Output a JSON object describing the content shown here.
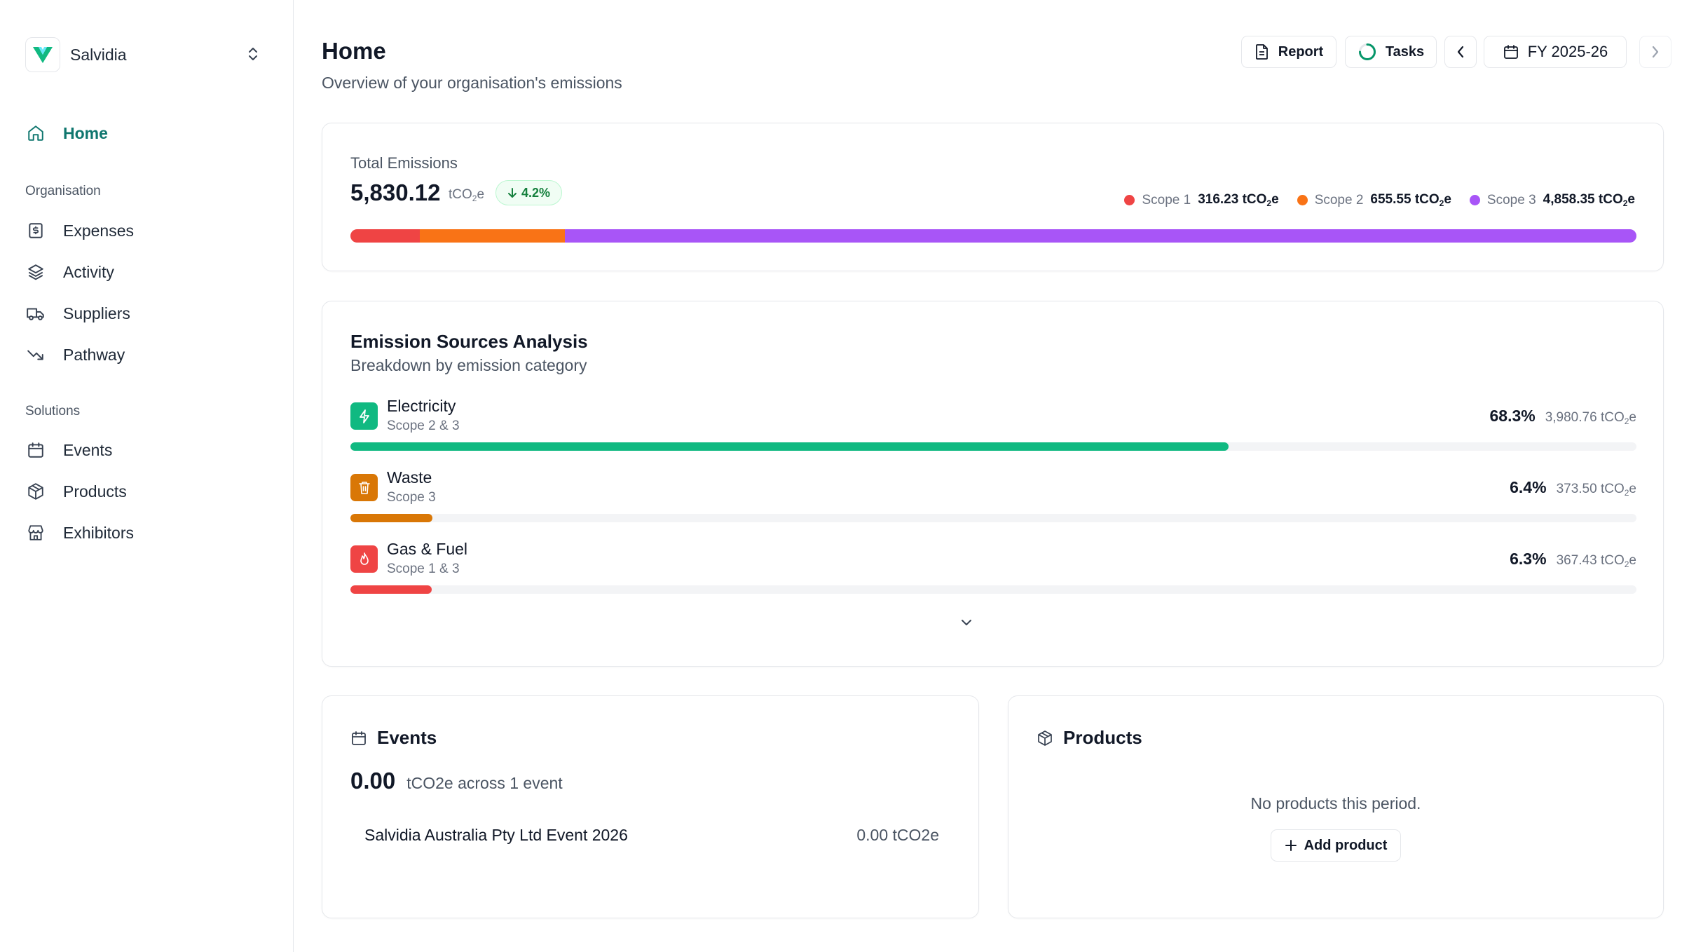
{
  "app": {
    "org_name": "Salvidia"
  },
  "sidebar": {
    "home": "Home",
    "sections": [
      {
        "title": "Organisation",
        "items": [
          "Expenses",
          "Activity",
          "Suppliers",
          "Pathway"
        ]
      },
      {
        "title": "Solutions",
        "items": [
          "Events",
          "Products",
          "Exhibitors"
        ]
      }
    ]
  },
  "header": {
    "title": "Home",
    "subtitle": "Overview of your organisation's emissions",
    "report_label": "Report",
    "tasks_label": "Tasks",
    "period": "FY 2025-26"
  },
  "total": {
    "label": "Total Emissions",
    "value": "5,830.12",
    "unit_main": "tCO",
    "unit_sub": "2",
    "unit_end": "e",
    "trend": "4.2%",
    "trend_direction": "down",
    "scopes": [
      {
        "name": "Scope 1",
        "value": "316.23 tCO",
        "sub": "2",
        "end": "e",
        "color": "#ef4444",
        "share": 0.0542
      },
      {
        "name": "Scope 2",
        "value": "655.55 tCO",
        "sub": "2",
        "end": "e",
        "color": "#f97316",
        "share": 0.1124
      },
      {
        "name": "Scope 3",
        "value": "4,858.35 tCO",
        "sub": "2",
        "end": "e",
        "color": "#a855f7",
        "share": 0.8334
      }
    ]
  },
  "sources": {
    "title": "Emission Sources Analysis",
    "subtitle": "Breakdown by emission category",
    "items": [
      {
        "name": "Electricity",
        "scope": "Scope 2 & 3",
        "pct": "68.3%",
        "amount": "3,980.76 tCO",
        "sub": "2",
        "end": "e",
        "share": 0.683,
        "color": "#10b981",
        "icon": "lightning-icon"
      },
      {
        "name": "Waste",
        "scope": "Scope 3",
        "pct": "6.4%",
        "amount": "373.50 tCO",
        "sub": "2",
        "end": "e",
        "share": 0.064,
        "color": "#d97706",
        "icon": "trash-icon"
      },
      {
        "name": "Gas & Fuel",
        "scope": "Scope 1 & 3",
        "pct": "6.3%",
        "amount": "367.43 tCO",
        "sub": "2",
        "end": "e",
        "share": 0.063,
        "color": "#ef4444",
        "icon": "flame-icon"
      }
    ]
  },
  "events": {
    "title": "Events",
    "total": "0.00",
    "desc": "tCO2e across 1 event",
    "rows": [
      {
        "name": "Salvidia Australia Pty Ltd Event 2026",
        "value": "0.00 tCO2e"
      }
    ]
  },
  "products": {
    "title": "Products",
    "empty": "No products this period.",
    "add_label": "Add product"
  }
}
